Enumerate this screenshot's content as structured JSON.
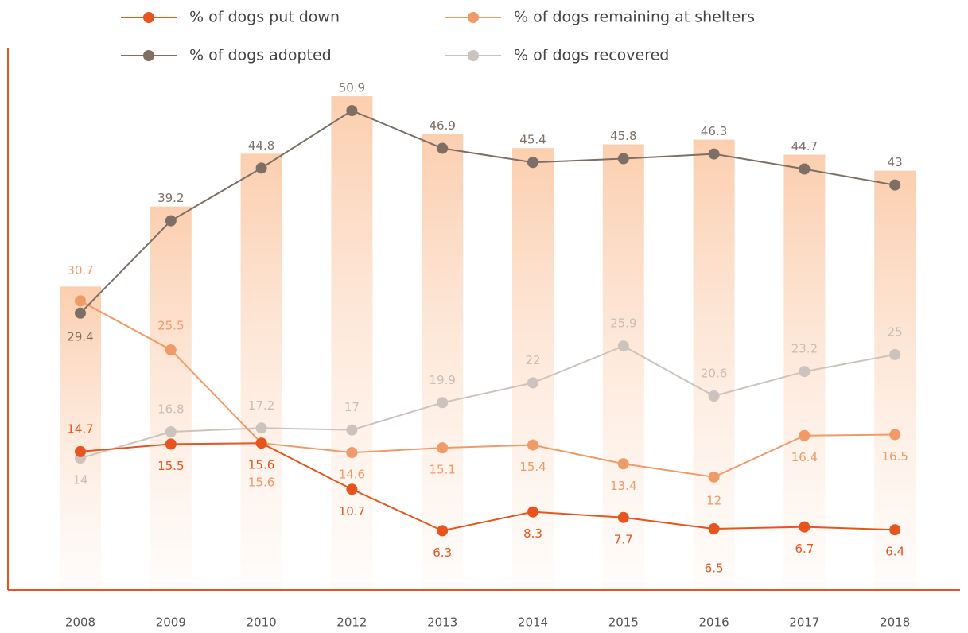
{
  "chart_data": {
    "type": "line",
    "categories": [
      "2008",
      "2009",
      "2010",
      "2012",
      "2013",
      "2014",
      "2015",
      "2016",
      "2017",
      "2018"
    ],
    "series": [
      {
        "name": "% of dogs put down",
        "color": "#e8541e",
        "values": [
          14.7,
          15.5,
          15.6,
          10.7,
          6.3,
          8.3,
          7.7,
          6.5,
          6.7,
          6.4
        ]
      },
      {
        "name": "% of dogs remaining at shelters",
        "color": "#f09a68",
        "values": [
          30.7,
          25.5,
          15.6,
          14.6,
          15.1,
          15.4,
          13.4,
          12,
          16.4,
          16.5
        ]
      },
      {
        "name": "% of dogs adopted",
        "color": "#7d6e66",
        "values": [
          29.4,
          39.2,
          44.8,
          50.9,
          46.9,
          45.4,
          45.8,
          46.3,
          44.7,
          43
        ]
      },
      {
        "name": "% of dogs recovered",
        "color": "#cdc3be",
        "values": [
          14,
          16.8,
          17.2,
          17,
          19.9,
          22,
          25.9,
          20.6,
          23.2,
          25
        ]
      }
    ],
    "ylim": [
      0,
      58
    ]
  }
}
